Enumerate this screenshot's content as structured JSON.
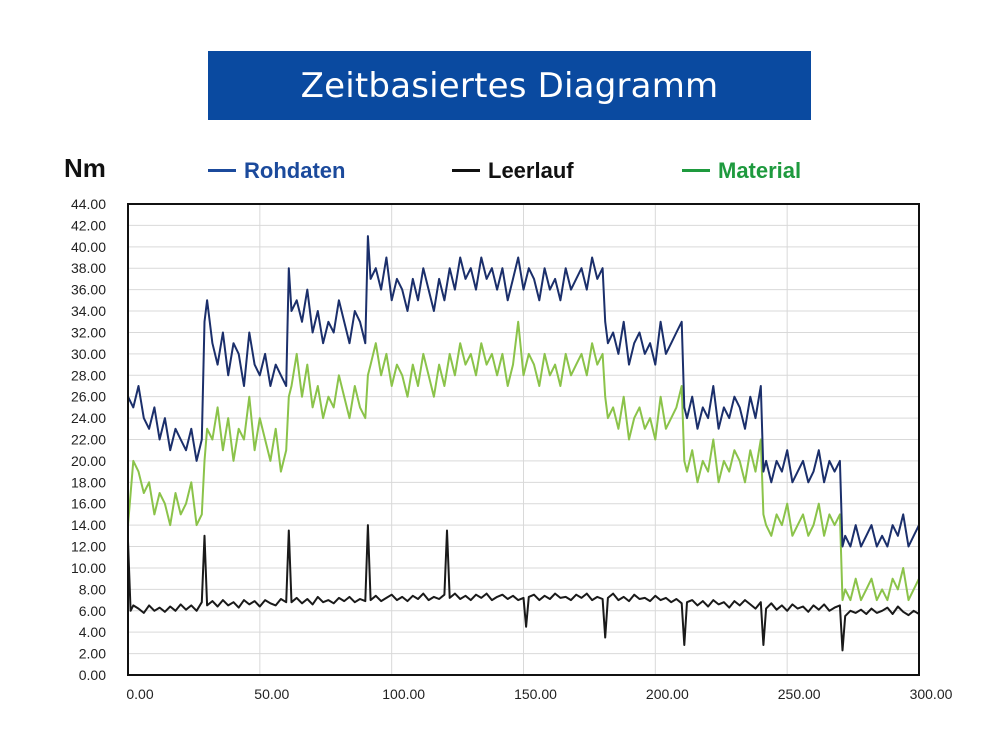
{
  "title": "Zeitbasiertes Diagramm",
  "chart_data": {
    "type": "line",
    "title": "Zeitbasiertes Diagramm",
    "ylabel": "Nm",
    "xlabel": "",
    "xlim": [
      0,
      300
    ],
    "ylim": [
      0,
      44
    ],
    "grid": true,
    "legend_position": "top",
    "xticks": [
      "0.00",
      "50.00",
      "100.00",
      "150.00",
      "200.00",
      "250.00",
      "300.00"
    ],
    "xtick_values": [
      0,
      50,
      100,
      150,
      200,
      250,
      300
    ],
    "yticks": [
      "0.00",
      "2.00",
      "4.00",
      "6.00",
      "8.00",
      "10.00",
      "12.00",
      "14.00",
      "16.00",
      "18.00",
      "20.00",
      "22.00",
      "24.00",
      "26.00",
      "28.00",
      "30.00",
      "32.00",
      "34.00",
      "36.00",
      "38.00",
      "40.00",
      "42.00",
      "44.00"
    ],
    "series": [
      {
        "name": "Rohdaten",
        "color": "#1b2f6b",
        "x": [
          0,
          2,
          4,
          6,
          8,
          10,
          12,
          14,
          16,
          18,
          20,
          22,
          24,
          26,
          28,
          29,
          30,
          32,
          34,
          36,
          38,
          40,
          42,
          44,
          46,
          48,
          50,
          52,
          54,
          56,
          58,
          60,
          61,
          62,
          64,
          66,
          68,
          70,
          72,
          74,
          76,
          78,
          80,
          82,
          84,
          86,
          88,
          90,
          91,
          92,
          94,
          96,
          98,
          100,
          102,
          104,
          106,
          108,
          110,
          112,
          114,
          116,
          118,
          120,
          122,
          124,
          126,
          128,
          130,
          132,
          134,
          136,
          138,
          140,
          142,
          144,
          146,
          148,
          150,
          152,
          154,
          156,
          158,
          160,
          162,
          164,
          166,
          168,
          170,
          172,
          174,
          176,
          178,
          180,
          181,
          182,
          184,
          186,
          188,
          190,
          192,
          194,
          196,
          198,
          200,
          202,
          204,
          206,
          208,
          210,
          211,
          212,
          214,
          216,
          218,
          220,
          222,
          224,
          226,
          228,
          230,
          232,
          234,
          236,
          238,
          240,
          241,
          242,
          244,
          246,
          248,
          250,
          252,
          254,
          256,
          258,
          260,
          262,
          264,
          266,
          268,
          270,
          271,
          272,
          274,
          276,
          278,
          280,
          282,
          284,
          286,
          288,
          290,
          292,
          294,
          296,
          298,
          300
        ],
        "values": [
          26,
          25,
          27,
          24,
          23,
          25,
          22,
          24,
          21,
          23,
          22,
          21,
          23,
          20,
          22,
          33,
          35,
          31,
          29,
          32,
          28,
          31,
          30,
          27,
          32,
          29,
          28,
          30,
          27,
          29,
          28,
          27,
          38,
          34,
          35,
          33,
          36,
          32,
          34,
          31,
          33,
          32,
          35,
          33,
          31,
          34,
          33,
          31,
          41,
          37,
          38,
          36,
          39,
          35,
          37,
          36,
          34,
          37,
          35,
          38,
          36,
          34,
          37,
          35,
          38,
          36,
          39,
          37,
          38,
          36,
          39,
          37,
          38,
          36,
          38,
          35,
          37,
          39,
          36,
          38,
          37,
          35,
          38,
          36,
          37,
          35,
          38,
          36,
          37,
          38,
          36,
          39,
          37,
          38,
          33,
          31,
          32,
          30,
          33,
          29,
          31,
          32,
          30,
          31,
          29,
          33,
          30,
          31,
          32,
          33,
          25,
          24,
          26,
          23,
          25,
          24,
          27,
          23,
          25,
          24,
          26,
          25,
          23,
          26,
          24,
          27,
          19,
          20,
          18,
          20,
          19,
          21,
          18,
          19,
          20,
          18,
          19,
          21,
          18,
          20,
          19,
          20,
          12,
          13,
          12,
          14,
          12,
          13,
          14,
          12,
          13,
          12,
          14,
          13,
          15,
          12,
          13,
          14
        ]
      },
      {
        "name": "Leerlauf",
        "color": "#1a1a1a",
        "x": [
          0,
          1,
          2,
          4,
          6,
          8,
          10,
          12,
          14,
          16,
          18,
          20,
          22,
          24,
          26,
          28,
          29,
          30,
          32,
          34,
          36,
          38,
          40,
          42,
          44,
          46,
          48,
          50,
          52,
          54,
          56,
          58,
          60,
          61,
          62,
          64,
          66,
          68,
          70,
          72,
          74,
          76,
          78,
          80,
          82,
          84,
          86,
          88,
          90,
          91,
          92,
          94,
          96,
          98,
          100,
          102,
          104,
          106,
          108,
          110,
          112,
          114,
          116,
          118,
          120,
          121,
          122,
          124,
          126,
          128,
          130,
          132,
          134,
          136,
          138,
          140,
          142,
          144,
          146,
          148,
          150,
          151,
          152,
          154,
          156,
          158,
          160,
          162,
          164,
          166,
          168,
          170,
          172,
          174,
          176,
          178,
          180,
          181,
          182,
          184,
          186,
          188,
          190,
          192,
          194,
          196,
          198,
          200,
          202,
          204,
          206,
          208,
          210,
          211,
          212,
          214,
          216,
          218,
          220,
          222,
          224,
          226,
          228,
          230,
          232,
          234,
          236,
          238,
          240,
          241,
          242,
          244,
          246,
          248,
          250,
          252,
          254,
          256,
          258,
          260,
          262,
          264,
          266,
          268,
          270,
          271,
          272,
          274,
          276,
          278,
          280,
          282,
          284,
          286,
          288,
          290,
          292,
          294,
          296,
          298,
          300
        ],
        "values": [
          12.5,
          6,
          6.5,
          6.2,
          5.8,
          6.5,
          6,
          6.3,
          5.9,
          6.4,
          6,
          6.6,
          6.1,
          6.5,
          6,
          6.8,
          13,
          6.5,
          6.9,
          6.4,
          7,
          6.5,
          6.8,
          6.3,
          7,
          6.6,
          6.9,
          6.4,
          7,
          6.7,
          6.5,
          7.1,
          6.8,
          13.5,
          6.8,
          7.2,
          6.7,
          7.1,
          6.6,
          7.3,
          6.8,
          7,
          6.7,
          7.2,
          6.9,
          7.3,
          6.8,
          7.1,
          6.9,
          14,
          7,
          7.4,
          6.9,
          7.2,
          7.5,
          7,
          7.3,
          6.9,
          7.4,
          7.1,
          7.6,
          7,
          7.3,
          7.1,
          7.5,
          13.5,
          7.2,
          7.6,
          7.1,
          7.4,
          7,
          7.5,
          7.2,
          7.6,
          7,
          7.3,
          7.5,
          7.1,
          7.4,
          7,
          7.2,
          4.5,
          7.3,
          7.5,
          7,
          7.4,
          7.1,
          7.6,
          7.2,
          7.3,
          7,
          7.5,
          7.2,
          7.6,
          7,
          7.3,
          7.1,
          3.5,
          7.2,
          7.6,
          7,
          7.3,
          6.9,
          7.5,
          7.1,
          7.2,
          6.9,
          7.4,
          7,
          7.2,
          6.8,
          7.1,
          6.7,
          2.8,
          6.8,
          7,
          6.5,
          6.9,
          6.4,
          7,
          6.6,
          6.8,
          6.3,
          6.9,
          6.5,
          7,
          6.6,
          6.2,
          6.8,
          2.8,
          6.2,
          6.7,
          6.1,
          6.5,
          6,
          6.6,
          6.2,
          6.4,
          5.9,
          6.5,
          6.1,
          6.6,
          6,
          6.3,
          6.5,
          2.3,
          5.5,
          6,
          5.8,
          6.1,
          5.7,
          6.2,
          5.8,
          6,
          6.3,
          5.7,
          6.4,
          5.9,
          5.6,
          6,
          5.7
        ]
      },
      {
        "name": "Material",
        "color": "#8bc34a",
        "x": [
          0,
          2,
          4,
          6,
          8,
          10,
          12,
          14,
          16,
          18,
          20,
          22,
          24,
          26,
          28,
          29,
          30,
          32,
          34,
          36,
          38,
          40,
          42,
          44,
          46,
          48,
          50,
          52,
          54,
          56,
          58,
          60,
          61,
          62,
          64,
          66,
          68,
          70,
          72,
          74,
          76,
          78,
          80,
          82,
          84,
          86,
          88,
          90,
          91,
          92,
          94,
          96,
          98,
          100,
          102,
          104,
          106,
          108,
          110,
          112,
          114,
          116,
          118,
          120,
          122,
          124,
          126,
          128,
          130,
          132,
          134,
          136,
          138,
          140,
          142,
          144,
          146,
          148,
          150,
          152,
          154,
          156,
          158,
          160,
          162,
          164,
          166,
          168,
          170,
          172,
          174,
          176,
          178,
          180,
          181,
          182,
          184,
          186,
          188,
          190,
          192,
          194,
          196,
          198,
          200,
          202,
          204,
          206,
          208,
          210,
          211,
          212,
          214,
          216,
          218,
          220,
          222,
          224,
          226,
          228,
          230,
          232,
          234,
          236,
          238,
          240,
          241,
          242,
          244,
          246,
          248,
          250,
          252,
          254,
          256,
          258,
          260,
          262,
          264,
          266,
          268,
          270,
          271,
          272,
          274,
          276,
          278,
          280,
          282,
          284,
          286,
          288,
          290,
          292,
          294,
          296,
          298,
          300
        ],
        "values": [
          14,
          20,
          19,
          17,
          18,
          15,
          17,
          16,
          14,
          17,
          15,
          16,
          18,
          14,
          15,
          20,
          23,
          22,
          25,
          21,
          24,
          20,
          23,
          22,
          26,
          21,
          24,
          22,
          20,
          23,
          19,
          21,
          26,
          27,
          30,
          26,
          29,
          25,
          27,
          24,
          26,
          25,
          28,
          26,
          24,
          27,
          25,
          24,
          28,
          29,
          31,
          28,
          30,
          27,
          29,
          28,
          26,
          29,
          27,
          30,
          28,
          26,
          29,
          27,
          30,
          28,
          31,
          29,
          30,
          28,
          31,
          29,
          30,
          28,
          30,
          27,
          29,
          33,
          28,
          30,
          29,
          27,
          30,
          28,
          29,
          27,
          30,
          28,
          29,
          30,
          28,
          31,
          29,
          30,
          26,
          24,
          25,
          23,
          26,
          22,
          24,
          25,
          23,
          24,
          22,
          26,
          23,
          24,
          25,
          27,
          20,
          19,
          21,
          18,
          20,
          19,
          22,
          18,
          20,
          19,
          21,
          20,
          18,
          21,
          19,
          22,
          15,
          14,
          13,
          15,
          14,
          16,
          13,
          14,
          15,
          13,
          14,
          16,
          13,
          15,
          14,
          15,
          7,
          8,
          7,
          9,
          7,
          8,
          9,
          7,
          8,
          7,
          9,
          8,
          10,
          7,
          8,
          9
        ]
      }
    ]
  }
}
